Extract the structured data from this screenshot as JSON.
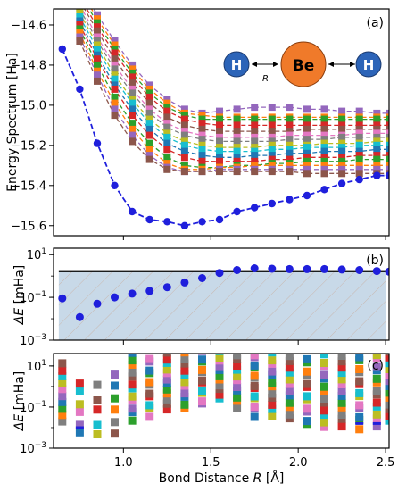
{
  "chart_data": [
    {
      "panel": "(a)",
      "type": "line",
      "ylabel": "Energy Spectrum [Ha]",
      "xlim": [
        0.6,
        2.52
      ],
      "ylim": [
        -15.65,
        -14.52
      ],
      "yticks": [
        -14.6,
        -14.8,
        -15.0,
        -15.2,
        -15.4,
        -15.6
      ],
      "ytick_labels": [
        "−14.6",
        "−14.8",
        "−15.0",
        "−15.2",
        "−15.4",
        "−15.6"
      ],
      "xticks": [
        1.0,
        1.5,
        2.0,
        2.5
      ],
      "ground_state": {
        "color": "#1f1fdc",
        "x": [
          0.65,
          0.75,
          0.85,
          0.95,
          1.05,
          1.15,
          1.25,
          1.35,
          1.45,
          1.55,
          1.65,
          1.75,
          1.85,
          1.95,
          2.05,
          2.15,
          2.25,
          2.35,
          2.45,
          2.52
        ],
        "y": [
          -14.72,
          -14.92,
          -15.19,
          -15.4,
          -15.53,
          -15.57,
          -15.58,
          -15.6,
          -15.58,
          -15.57,
          -15.53,
          -15.51,
          -15.49,
          -15.47,
          -15.45,
          -15.42,
          -15.39,
          -15.37,
          -15.35,
          -15.35
        ]
      },
      "excited_states": {
        "x": [
          0.75,
          0.85,
          0.95,
          1.05,
          1.15,
          1.25,
          1.35,
          1.45,
          1.55,
          1.65,
          1.75,
          1.85,
          1.95,
          2.05,
          2.15,
          2.25,
          2.35,
          2.45,
          2.52
        ],
        "series": [
          {
            "color": "#9467bd",
            "y": [
              -14.4,
              -14.55,
              -14.68,
              -14.8,
              -14.9,
              -14.97,
              -15.02,
              -15.04,
              -15.03,
              -15.02,
              -15.01,
              -15.01,
              -15.01,
              -15.02,
              -15.02,
              -15.03,
              -15.03,
              -15.04,
              -15.04
            ]
          },
          {
            "color": "#ff7f0e",
            "y": [
              -14.42,
              -14.57,
              -14.7,
              -14.82,
              -14.92,
              -14.99,
              -15.04,
              -15.05,
              -15.06,
              -15.06,
              -15.06,
              -15.06,
              -15.06,
              -15.06,
              -15.06,
              -15.06,
              -15.06,
              -15.06,
              -15.06
            ]
          },
          {
            "color": "#2ca02c",
            "y": [
              -14.44,
              -14.59,
              -14.72,
              -14.84,
              -14.94,
              -15.01,
              -15.05,
              -15.07,
              -15.07,
              -15.07,
              -15.07,
              -15.07,
              -15.07,
              -15.07,
              -15.07,
              -15.07,
              -15.07,
              -15.07,
              -15.07
            ]
          },
          {
            "color": "#d62728",
            "y": [
              -14.46,
              -14.61,
              -14.74,
              -14.86,
              -14.96,
              -15.03,
              -15.07,
              -15.09,
              -15.1,
              -15.1,
              -15.1,
              -15.1,
              -15.1,
              -15.1,
              -15.1,
              -15.1,
              -15.1,
              -15.1,
              -15.1
            ]
          },
          {
            "color": "#8c564b",
            "y": [
              -14.48,
              -14.63,
              -14.77,
              -14.89,
              -14.99,
              -15.06,
              -15.1,
              -15.12,
              -15.13,
              -15.13,
              -15.13,
              -15.13,
              -15.13,
              -15.12,
              -15.12,
              -15.12,
              -15.12,
              -15.12,
              -15.12
            ]
          },
          {
            "color": "#e377c2",
            "y": [
              -14.5,
              -14.66,
              -14.8,
              -14.92,
              -15.02,
              -15.09,
              -15.13,
              -15.15,
              -15.16,
              -15.16,
              -15.16,
              -15.16,
              -15.15,
              -15.15,
              -15.15,
              -15.15,
              -15.14,
              -15.14,
              -15.14
            ]
          },
          {
            "color": "#7f7f7f",
            "y": [
              -14.52,
              -14.68,
              -14.82,
              -14.94,
              -15.04,
              -15.11,
              -15.15,
              -15.17,
              -15.18,
              -15.18,
              -15.18,
              -15.18,
              -15.17,
              -15.17,
              -15.17,
              -15.16,
              -15.16,
              -15.16,
              -15.16
            ]
          },
          {
            "color": "#bcbd22",
            "y": [
              -14.54,
              -14.7,
              -14.85,
              -14.97,
              -15.07,
              -15.14,
              -15.18,
              -15.2,
              -15.21,
              -15.21,
              -15.21,
              -15.2,
              -15.2,
              -15.2,
              -15.19,
              -15.19,
              -15.19,
              -15.18,
              -15.18
            ]
          },
          {
            "color": "#17becf",
            "y": [
              -14.56,
              -14.72,
              -14.87,
              -14.99,
              -15.09,
              -15.16,
              -15.2,
              -15.22,
              -15.23,
              -15.23,
              -15.23,
              -15.22,
              -15.22,
              -15.21,
              -15.21,
              -15.21,
              -15.2,
              -15.2,
              -15.2
            ]
          },
          {
            "color": "#1f77b4",
            "y": [
              -14.58,
              -14.75,
              -14.9,
              -15.02,
              -15.12,
              -15.19,
              -15.23,
              -15.25,
              -15.26,
              -15.26,
              -15.25,
              -15.25,
              -15.24,
              -15.24,
              -15.23,
              -15.23,
              -15.23,
              -15.22,
              -15.22
            ]
          },
          {
            "color": "#d62728",
            "y": [
              -14.6,
              -14.77,
              -14.92,
              -15.05,
              -15.15,
              -15.22,
              -15.26,
              -15.28,
              -15.28,
              -15.28,
              -15.28,
              -15.27,
              -15.27,
              -15.26,
              -15.26,
              -15.26,
              -15.25,
              -15.25,
              -15.25
            ]
          },
          {
            "color": "#2ca02c",
            "y": [
              -14.62,
              -14.8,
              -14.96,
              -15.09,
              -15.19,
              -15.26,
              -15.3,
              -15.31,
              -15.31,
              -15.3,
              -15.3,
              -15.29,
              -15.29,
              -15.28,
              -15.28,
              -15.28,
              -15.27,
              -15.27,
              -15.27
            ]
          },
          {
            "color": "#ff7f0e",
            "y": [
              -14.64,
              -14.83,
              -14.99,
              -15.12,
              -15.22,
              -15.29,
              -15.32,
              -15.32,
              -15.31,
              -15.31,
              -15.3,
              -15.3,
              -15.3,
              -15.3,
              -15.3,
              -15.3,
              -15.3,
              -15.3,
              -15.3
            ]
          },
          {
            "color": "#9467bd",
            "y": [
              -14.66,
              -14.85,
              -15.02,
              -15.15,
              -15.25,
              -15.31,
              -15.33,
              -15.33,
              -15.32,
              -15.32,
              -15.32,
              -15.32,
              -15.32,
              -15.32,
              -15.32,
              -15.32,
              -15.32,
              -15.32,
              -15.32
            ]
          },
          {
            "color": "#8c564b",
            "y": [
              -14.68,
              -14.88,
              -15.05,
              -15.18,
              -15.27,
              -15.32,
              -15.33,
              -15.33,
              -15.33,
              -15.33,
              -15.33,
              -15.33,
              -15.33,
              -15.34,
              -15.34,
              -15.34,
              -15.34,
              -15.34,
              -15.34
            ]
          }
        ]
      },
      "annotation": {
        "atoms": [
          "H",
          "Be",
          "H"
        ],
        "distance_label": "R",
        "atom_colors": {
          "H": "#2c64b8",
          "Be": "#f07a2a"
        }
      }
    },
    {
      "panel": "(b)",
      "type": "scatter",
      "ylabel": "ΔE [mHa]",
      "ylabel_base": "ΔE",
      "ylabel_unit": " [mHa]",
      "yscale": "log",
      "xlim": [
        0.6,
        2.52
      ],
      "ylim": [
        0.001,
        20
      ],
      "yticks": [
        10,
        0.1,
        0.001
      ],
      "ytick_labels": [
        {
          "base": "10",
          "exp": "1"
        },
        {
          "base": "10",
          "exp": "−1"
        },
        {
          "base": "10",
          "exp": "−3"
        }
      ],
      "xticks": [
        1.0,
        1.5,
        2.0,
        2.5
      ],
      "threshold": 1.6,
      "shaded_region": "below threshold, hatched",
      "color": "#1f1fdc",
      "x": [
        0.65,
        0.75,
        0.85,
        0.95,
        1.05,
        1.15,
        1.25,
        1.35,
        1.45,
        1.55,
        1.65,
        1.75,
        1.85,
        1.95,
        2.05,
        2.15,
        2.25,
        2.35,
        2.45,
        2.52
      ],
      "y": [
        0.09,
        0.012,
        0.05,
        0.1,
        0.15,
        0.2,
        0.3,
        0.5,
        0.8,
        1.4,
        1.9,
        2.3,
        2.2,
        2.1,
        2.1,
        2.1,
        2.0,
        1.9,
        1.7,
        1.6
      ]
    },
    {
      "panel": "(c)",
      "type": "scatter",
      "ylabel": "ΔE [mHa]",
      "ylabel_base": "ΔE",
      "ylabel_unit": " [mHa]",
      "yscale": "log",
      "xlabel": "Bond Distance R [Å]",
      "xlabel_pre": "Bond Distance ",
      "xlabel_var": "R",
      "xlabel_unit": " [Å]",
      "xlim": [
        0.6,
        2.52
      ],
      "ylim": [
        0.001,
        40
      ],
      "yticks": [
        10,
        0.1,
        0.001
      ],
      "ytick_labels": [
        {
          "base": "10",
          "exp": "1"
        },
        {
          "base": "10",
          "exp": "−1"
        },
        {
          "base": "10",
          "exp": "−3"
        }
      ],
      "xticks": [
        1.0,
        1.5,
        2.0,
        2.5
      ],
      "xtick_labels": [
        "1.0",
        "1.5",
        "2.0",
        "2.5"
      ],
      "marker": "square",
      "colors": [
        "#7f7f7f",
        "#ff7f0e",
        "#2ca02c",
        "#1f77b4",
        "#9467bd",
        "#e377c2",
        "#bcbd22",
        "#17becf",
        "#d62728",
        "#8c564b"
      ],
      "x": [
        0.65,
        0.75,
        0.85,
        0.95,
        1.05,
        1.15,
        1.25,
        1.35,
        1.45,
        1.55,
        1.65,
        1.75,
        1.85,
        1.95,
        2.05,
        2.15,
        2.25,
        2.35,
        2.45,
        2.52
      ],
      "log_ranges": [
        [
          -1.7,
          1.1
        ],
        [
          -2.3,
          0.2
        ],
        [
          -2.4,
          0.0
        ],
        [
          -2.3,
          0.6
        ],
        [
          -1.6,
          1.6
        ],
        [
          -1.4,
          1.7
        ],
        [
          -1.1,
          1.6
        ],
        [
          -1.1,
          1.9
        ],
        [
          -0.9,
          1.9
        ],
        [
          -0.6,
          1.9
        ],
        [
          -1.0,
          1.8
        ],
        [
          -1.4,
          1.6
        ],
        [
          -1.4,
          1.6
        ],
        [
          -1.6,
          1.5
        ],
        [
          -1.9,
          1.4
        ],
        [
          -2.0,
          1.5
        ],
        [
          -1.9,
          1.5
        ],
        [
          -2.0,
          1.5
        ],
        [
          -1.9,
          1.6
        ],
        [
          -1.7,
          1.7
        ]
      ],
      "counts": [
        10,
        6,
        5,
        6,
        12,
        12,
        12,
        12,
        12,
        12,
        12,
        13,
        12,
        12,
        12,
        13,
        13,
        13,
        13,
        13
      ],
      "special_marks": {
        "blue_dash": "#1f1fdc"
      }
    }
  ]
}
